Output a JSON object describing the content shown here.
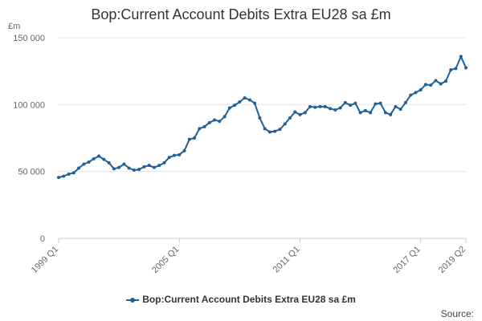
{
  "chart_data": {
    "type": "line",
    "title": "Bop:Current Account Debits Extra EU28 sa £m",
    "ylabel": "£m",
    "xlabel": "",
    "ylim": [
      0,
      150000
    ],
    "y_ticks": [
      0,
      50000,
      100000,
      150000
    ],
    "y_tick_labels": [
      "0",
      "50 000",
      "100 000",
      "150 000"
    ],
    "x_tick_labels": [
      "1999 Q1",
      "2005 Q1",
      "2011 Q1",
      "2017 Q1",
      "2019 Q2"
    ],
    "x_tick_index": [
      0,
      24,
      48,
      72,
      81
    ],
    "grid": true,
    "legend_position": "bottom",
    "series": [
      {
        "name": "Bop:Current Account Debits Extra EU28 sa £m",
        "color": "#206095",
        "x": [
          "1999 Q1",
          "1999 Q2",
          "1999 Q3",
          "1999 Q4",
          "2000 Q1",
          "2000 Q2",
          "2000 Q3",
          "2000 Q4",
          "2001 Q1",
          "2001 Q2",
          "2001 Q3",
          "2001 Q4",
          "2002 Q1",
          "2002 Q2",
          "2002 Q3",
          "2002 Q4",
          "2003 Q1",
          "2003 Q2",
          "2003 Q3",
          "2003 Q4",
          "2004 Q1",
          "2004 Q2",
          "2004 Q3",
          "2004 Q4",
          "2005 Q1",
          "2005 Q2",
          "2005 Q3",
          "2005 Q4",
          "2006 Q1",
          "2006 Q2",
          "2006 Q3",
          "2006 Q4",
          "2007 Q1",
          "2007 Q2",
          "2007 Q3",
          "2007 Q4",
          "2008 Q1",
          "2008 Q2",
          "2008 Q3",
          "2008 Q4",
          "2009 Q1",
          "2009 Q2",
          "2009 Q3",
          "2009 Q4",
          "2010 Q1",
          "2010 Q2",
          "2010 Q3",
          "2010 Q4",
          "2011 Q1",
          "2011 Q2",
          "2011 Q3",
          "2011 Q4",
          "2012 Q1",
          "2012 Q2",
          "2012 Q3",
          "2012 Q4",
          "2013 Q1",
          "2013 Q2",
          "2013 Q3",
          "2013 Q4",
          "2014 Q1",
          "2014 Q2",
          "2014 Q3",
          "2014 Q4",
          "2015 Q1",
          "2015 Q2",
          "2015 Q3",
          "2015 Q4",
          "2016 Q1",
          "2016 Q2",
          "2016 Q3",
          "2016 Q4",
          "2017 Q1",
          "2017 Q2",
          "2017 Q3",
          "2017 Q4",
          "2018 Q1",
          "2018 Q2",
          "2018 Q3",
          "2018 Q4",
          "2019 Q1",
          "2019 Q2"
        ],
        "values": [
          45500,
          46500,
          48000,
          49000,
          52500,
          55500,
          57000,
          59500,
          61500,
          59000,
          56500,
          52000,
          53000,
          55500,
          52500,
          51000,
          51500,
          53500,
          54500,
          53000,
          54500,
          56500,
          60500,
          62000,
          62500,
          65500,
          74000,
          75000,
          82000,
          83500,
          86500,
          88500,
          87500,
          91000,
          97500,
          99500,
          102000,
          105000,
          103500,
          101000,
          90000,
          82000,
          79500,
          80000,
          81500,
          85500,
          90000,
          94500,
          92500,
          94000,
          98500,
          98000,
          98500,
          98500,
          97000,
          96000,
          97500,
          101500,
          99500,
          101000,
          94000,
          95500,
          94000,
          100500,
          101000,
          94000,
          92500,
          98500,
          96500,
          101500,
          107000,
          109000,
          111000,
          115000,
          114500,
          118000,
          115500,
          117500,
          126000,
          127000,
          136000,
          127500
        ]
      }
    ]
  },
  "legend": {
    "label": "Bop:Current Account Debits Extra EU28 sa £m"
  },
  "footer": {
    "source_label": "Source:"
  }
}
